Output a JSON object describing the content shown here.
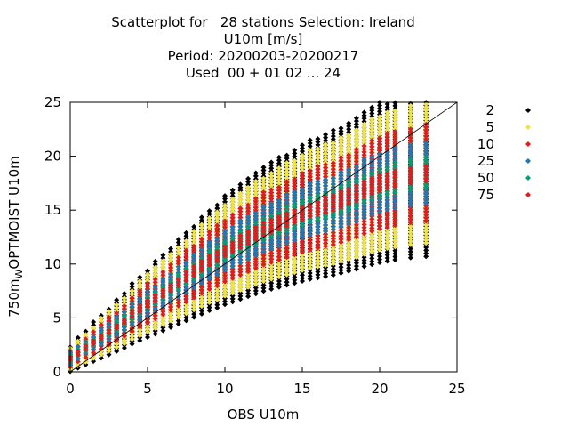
{
  "chart_data": {
    "type": "scatter",
    "title_lines": [
      "Scatterplot for   28 stations Selection: Ireland",
      "U10m [m/s]",
      "Period: 20200203-20200217",
      "Used  00 + 01 02 ... 24"
    ],
    "xlabel": "OBS U10m",
    "ylabel_main": "750m",
    "ylabel_sub": "W",
    "ylabel_rest": "OPTMOIST U10m",
    "xlim": [
      0,
      25
    ],
    "ylim": [
      0,
      25
    ],
    "xticks": [
      0,
      5,
      10,
      15,
      20,
      25
    ],
    "yticks": [
      0,
      5,
      10,
      15,
      20,
      25
    ],
    "diagonal": true,
    "legend_position": "right",
    "series": [
      {
        "name": "2",
        "color": "#000000",
        "lo": 0.38,
        "hi": 0.38,
        "min_width": 0.8
      },
      {
        "name": "5",
        "color": "#f0e442",
        "lo": 0.3,
        "hi": 0.34,
        "min_width": 0.8
      },
      {
        "name": "10",
        "color": "#e41a1c",
        "lo": 0.2,
        "hi": 0.24,
        "min_width": 0.8
      },
      {
        "name": "25",
        "color": "#1f78b4",
        "lo": 0.14,
        "hi": 0.14,
        "min_width": 0.6
      },
      {
        "name": "50",
        "color": "#009e73",
        "lo": 0.07,
        "hi": 0.07,
        "min_width": 0.3
      },
      {
        "name": "75",
        "color": "#e41a1c",
        "lo": 0.04,
        "hi": 0.04,
        "min_width": 0.2
      }
    ],
    "obs_values": [
      0,
      0.5,
      1,
      1.5,
      2,
      2.5,
      3,
      3.5,
      4,
      4.5,
      5,
      5.5,
      6,
      6.5,
      7,
      7.5,
      8,
      8.5,
      9,
      9.5,
      10,
      10.5,
      11,
      11.5,
      12,
      12.5,
      13,
      13.5,
      14,
      14.5,
      15,
      15.5,
      16,
      16.5,
      17,
      17.5,
      18,
      18.5,
      19,
      19.5,
      20,
      20.5,
      21,
      22,
      23
    ],
    "model_center": [
      1.3,
      1.8,
      2.3,
      2.8,
      3.3,
      3.8,
      4.3,
      4.8,
      5.4,
      5.9,
      6.4,
      6.9,
      7.4,
      7.9,
      8.4,
      8.9,
      9.4,
      9.9,
      10.4,
      10.8,
      11.3,
      11.7,
      12.1,
      12.5,
      12.9,
      13.3,
      13.6,
      13.9,
      14.2,
      14.5,
      14.8,
      15.1,
      15.3,
      15.5,
      15.7,
      16.0,
      16.3,
      16.6,
      17.0,
      17.3,
      17.6,
      17.8,
      18.0,
      18.3,
      18.5
    ]
  }
}
